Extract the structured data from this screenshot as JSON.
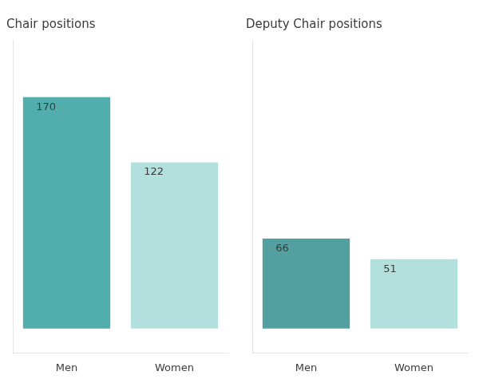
{
  "chart_data": [
    {
      "type": "bar",
      "title": "Chair positions",
      "categories": [
        "Men",
        "Women"
      ],
      "values": [
        170,
        122
      ],
      "colors": [
        "#52AEAD",
        "#B2E0DC"
      ],
      "ylim": [
        -18,
        212
      ],
      "data_labels": true,
      "tick_labels": "x",
      "grid": false
    },
    {
      "type": "bar",
      "title": "Deputy Chair positions",
      "categories": [
        "Men",
        "Women"
      ],
      "values": [
        66,
        51
      ],
      "colors": [
        "#52A0A0",
        "#B2E0DC"
      ],
      "ylim": [
        -18,
        212
      ],
      "data_labels": true,
      "tick_labels": "x",
      "grid": false
    }
  ]
}
